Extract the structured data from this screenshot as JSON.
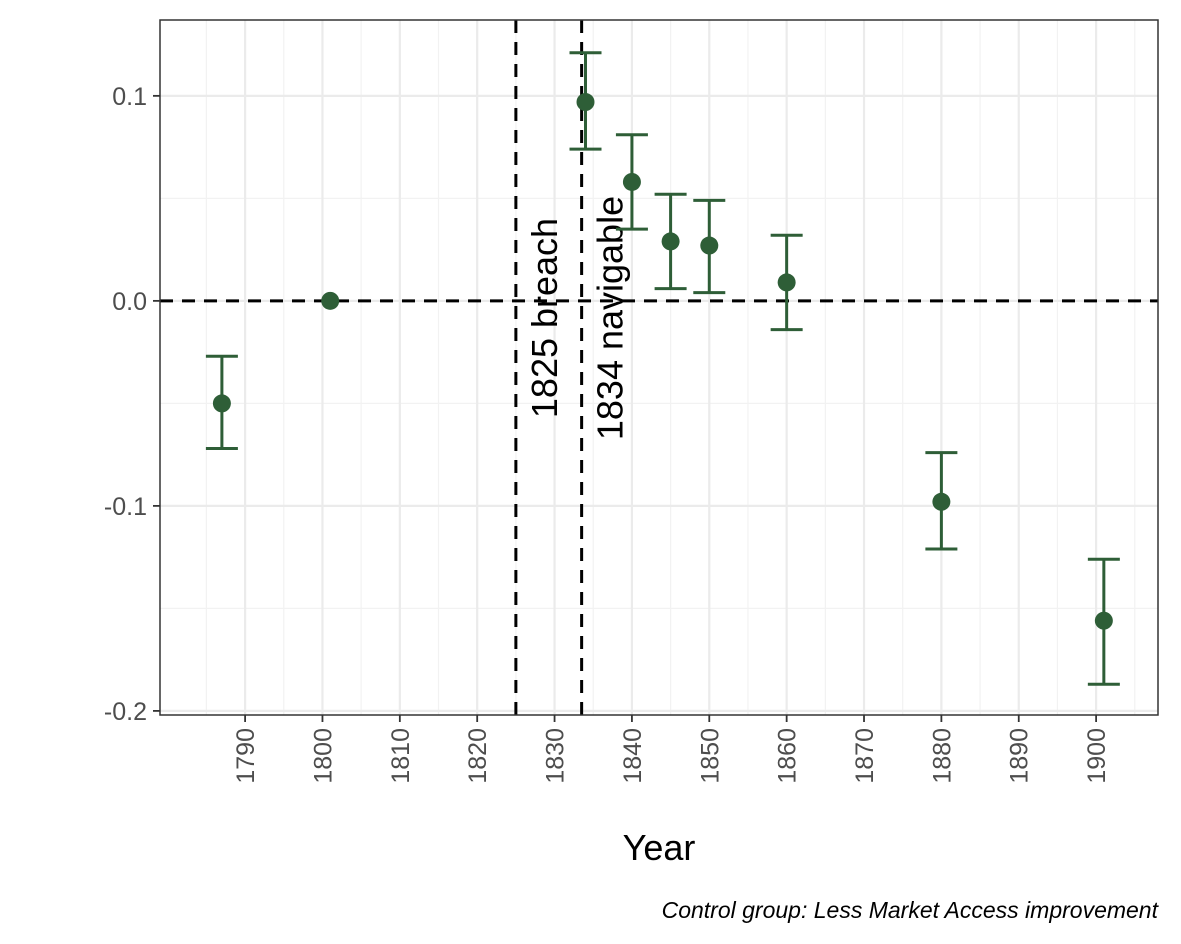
{
  "chart_data": {
    "type": "scatter",
    "title": "",
    "xlabel": "Year",
    "ylabel": "",
    "caption": "Control group: Less Market Access improvement",
    "xlim": [
      1779,
      1908
    ],
    "ylim": [
      -0.202,
      0.137
    ],
    "x_ticks": [
      1790,
      1800,
      1810,
      1820,
      1830,
      1840,
      1850,
      1860,
      1870,
      1880,
      1890,
      1900
    ],
    "x_tick_labels": [
      "1790",
      "1800",
      "1810",
      "1820",
      "1830",
      "1840",
      "1850",
      "1860",
      "1870",
      "1880",
      "1890",
      "1900"
    ],
    "y_ticks": [
      0.1,
      0.0,
      -0.1,
      -0.2
    ],
    "y_tick_labels": [
      "0.1",
      "0.0",
      "-0.1",
      "-0.2"
    ],
    "grid": true,
    "points": [
      {
        "x": 1787,
        "y": -0.05,
        "lower": -0.072,
        "upper": -0.027
      },
      {
        "x": 1801,
        "y": 0.0,
        "lower": null,
        "upper": null
      },
      {
        "x": 1834,
        "y": 0.097,
        "lower": 0.074,
        "upper": 0.121
      },
      {
        "x": 1840,
        "y": 0.058,
        "lower": 0.035,
        "upper": 0.081
      },
      {
        "x": 1845,
        "y": 0.029,
        "lower": 0.006,
        "upper": 0.052
      },
      {
        "x": 1850,
        "y": 0.027,
        "lower": 0.004,
        "upper": 0.049
      },
      {
        "x": 1860,
        "y": 0.009,
        "lower": -0.014,
        "upper": 0.032
      },
      {
        "x": 1880,
        "y": -0.098,
        "lower": -0.121,
        "upper": -0.074
      },
      {
        "x": 1901,
        "y": -0.156,
        "lower": -0.187,
        "upper": -0.126
      }
    ],
    "reference_lines": {
      "horizontal": [
        0.0
      ],
      "vertical": [
        {
          "x": 1825,
          "label": "1825 breach"
        },
        {
          "x": 1833.5,
          "label": "1834 navigable"
        }
      ]
    },
    "point_color": "#2e5e37",
    "line_color": "#000000"
  }
}
